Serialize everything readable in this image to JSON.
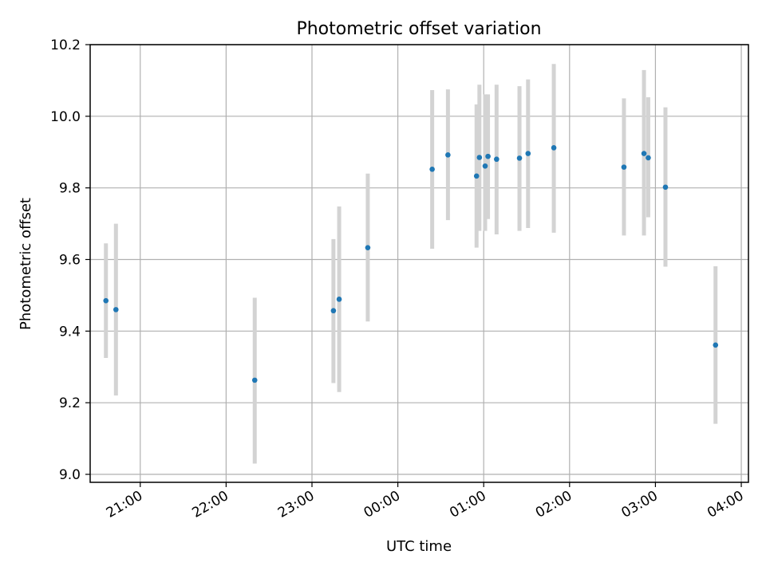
{
  "chart_data": {
    "type": "scatter",
    "title": "Photometric offset variation",
    "xlabel": "UTC time",
    "ylabel": "Photometric offset",
    "ylim": [
      9.0,
      10.2
    ],
    "xlim": [
      "20:25",
      "04:05"
    ],
    "x_axis_type": "time",
    "x_tick_labels": [
      "21:00",
      "22:00",
      "23:00",
      "00:00",
      "01:00",
      "02:00",
      "03:00",
      "04:00"
    ],
    "y_tick_labels": [
      "9.0",
      "9.2",
      "9.4",
      "9.6",
      "9.8",
      "10.0",
      "10.2"
    ],
    "y_ticks": [
      9.0,
      9.2,
      9.4,
      9.6,
      9.8,
      10.0,
      10.2
    ],
    "grid": true,
    "colors": {
      "point": "#1f77b4",
      "errorbar": "#d3d3d3"
    },
    "points": [
      {
        "x": "20:36",
        "y": 9.485,
        "err_low": 9.325,
        "err_high": 9.645
      },
      {
        "x": "20:43",
        "y": 9.46,
        "err_low": 9.22,
        "err_high": 9.7
      },
      {
        "x": "22:20",
        "y": 9.263,
        "err_low": 9.03,
        "err_high": 9.493
      },
      {
        "x": "23:15",
        "y": 9.457,
        "err_low": 9.255,
        "err_high": 9.657
      },
      {
        "x": "23:19",
        "y": 9.489,
        "err_low": 9.23,
        "err_high": 9.748
      },
      {
        "x": "23:39",
        "y": 9.633,
        "err_low": 9.427,
        "err_high": 9.84
      },
      {
        "x": "00:24",
        "y": 9.852,
        "err_low": 9.63,
        "err_high": 10.073
      },
      {
        "x": "00:35",
        "y": 9.892,
        "err_low": 9.71,
        "err_high": 10.075
      },
      {
        "x": "00:55",
        "y": 9.833,
        "err_low": 9.633,
        "err_high": 10.033
      },
      {
        "x": "00:57",
        "y": 9.885,
        "err_low": 9.68,
        "err_high": 10.088
      },
      {
        "x": "01:01",
        "y": 9.861,
        "err_low": 9.68,
        "err_high": 10.061
      },
      {
        "x": "01:03",
        "y": 9.888,
        "err_low": 9.713,
        "err_high": 10.061
      },
      {
        "x": "01:09",
        "y": 9.88,
        "err_low": 9.67,
        "err_high": 10.088
      },
      {
        "x": "01:25",
        "y": 9.883,
        "err_low": 9.68,
        "err_high": 10.084
      },
      {
        "x": "01:31",
        "y": 9.896,
        "err_low": 9.688,
        "err_high": 10.103
      },
      {
        "x": "01:49",
        "y": 9.912,
        "err_low": 9.675,
        "err_high": 10.146
      },
      {
        "x": "02:38",
        "y": 9.858,
        "err_low": 9.667,
        "err_high": 10.05
      },
      {
        "x": "02:52",
        "y": 9.896,
        "err_low": 9.667,
        "err_high": 10.129
      },
      {
        "x": "02:55",
        "y": 9.884,
        "err_low": 9.718,
        "err_high": 10.053
      },
      {
        "x": "03:07",
        "y": 9.802,
        "err_low": 9.58,
        "err_high": 10.025
      },
      {
        "x": "03:42",
        "y": 9.361,
        "err_low": 9.141,
        "err_high": 9.581
      }
    ]
  }
}
